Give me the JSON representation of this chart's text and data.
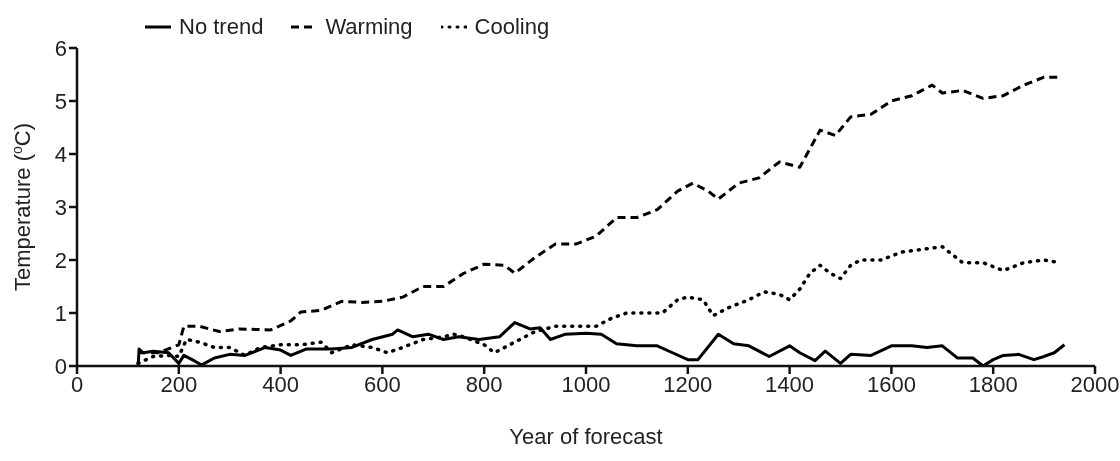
{
  "chart_data": {
    "type": "line",
    "xlabel": "Year of forecast",
    "ylabel": "Temperature ($^{o}$C)",
    "xlim": [
      0,
      2000
    ],
    "xticks": [
      0,
      200,
      400,
      600,
      800,
      1000,
      1200,
      1400,
      1600,
      1800,
      2000
    ],
    "ylim": [
      0,
      6
    ],
    "yticks": [
      0,
      1,
      2,
      3,
      4,
      5,
      6
    ],
    "grid": false,
    "legend": "top left",
    "marker": "none",
    "series": [
      {
        "name": "No trend",
        "color": "#000000",
        "line_style": "solid",
        "x": [
          120,
          122,
          130,
          150,
          180,
          200,
          210,
          230,
          245,
          270,
          300,
          330,
          370,
          400,
          420,
          450,
          500,
          540,
          580,
          620,
          630,
          660,
          690,
          720,
          750,
          790,
          830,
          860,
          890,
          910,
          930,
          960,
          1000,
          1030,
          1060,
          1100,
          1140,
          1170,
          1200,
          1220,
          1260,
          1290,
          1320,
          1360,
          1400,
          1420,
          1450,
          1470,
          1500,
          1520,
          1560,
          1600,
          1640,
          1670,
          1700,
          1730,
          1760,
          1780,
          1800,
          1820,
          1850,
          1880,
          1900,
          1920,
          1940
        ],
        "values": [
          0,
          0.32,
          0.25,
          0.28,
          0.25,
          0.05,
          0.2,
          0.1,
          0.02,
          0.15,
          0.22,
          0.2,
          0.35,
          0.3,
          0.2,
          0.32,
          0.32,
          0.35,
          0.5,
          0.6,
          0.68,
          0.55,
          0.6,
          0.5,
          0.55,
          0.5,
          0.55,
          0.82,
          0.7,
          0.72,
          0.5,
          0.6,
          0.62,
          0.6,
          0.42,
          0.38,
          0.38,
          0.25,
          0.12,
          0.12,
          0.6,
          0.42,
          0.38,
          0.18,
          0.38,
          0.25,
          0.1,
          0.28,
          0.05,
          0.22,
          0.2,
          0.38,
          0.38,
          0.35,
          0.38,
          0.15,
          0.15,
          0,
          0.12,
          0.2,
          0.22,
          0.12,
          0.18,
          0.25,
          0.4
        ]
      },
      {
        "name": "Warming",
        "color": "#000000",
        "line_style": "dashed",
        "x": [
          120,
          160,
          200,
          210,
          240,
          280,
          320,
          380,
          420,
          440,
          480,
          520,
          560,
          600,
          640,
          680,
          720,
          760,
          800,
          840,
          860,
          900,
          940,
          980,
          1020,
          1060,
          1100,
          1140,
          1180,
          1210,
          1240,
          1260,
          1300,
          1340,
          1380,
          1420,
          1460,
          1490,
          1520,
          1560,
          1600,
          1640,
          1680,
          1700,
          1740,
          1780,
          1820,
          1860,
          1900,
          1930
        ],
        "values": [
          0.25,
          0.25,
          0.4,
          0.75,
          0.75,
          0.65,
          0.7,
          0.68,
          0.85,
          1.02,
          1.05,
          1.22,
          1.2,
          1.22,
          1.3,
          1.5,
          1.5,
          1.75,
          1.92,
          1.9,
          1.75,
          2.05,
          2.3,
          2.3,
          2.45,
          2.8,
          2.8,
          2.95,
          3.3,
          3.45,
          3.3,
          3.15,
          3.45,
          3.55,
          3.85,
          3.75,
          4.45,
          4.35,
          4.7,
          4.75,
          5,
          5.1,
          5.3,
          5.15,
          5.2,
          5.05,
          5.1,
          5.3,
          5.45,
          5.45
        ]
      },
      {
        "name": "Cooling",
        "color": "#000000",
        "line_style": "dotted",
        "x": [
          120,
          150,
          180,
          200,
          215,
          240,
          270,
          300,
          330,
          360,
          400,
          440,
          480,
          500,
          540,
          580,
          610,
          640,
          680,
          720,
          740,
          760,
          800,
          820,
          860,
          900,
          940,
          980,
          1020,
          1050,
          1080,
          1110,
          1150,
          1180,
          1200,
          1230,
          1250,
          1280,
          1320,
          1350,
          1380,
          1400,
          1420,
          1440,
          1460,
          1480,
          1500,
          1520,
          1540,
          1580,
          1620,
          1660,
          1700,
          1740,
          1780,
          1820,
          1860,
          1900,
          1930
        ],
        "values": [
          0.05,
          0.18,
          0.2,
          0.18,
          0.5,
          0.45,
          0.35,
          0.35,
          0.2,
          0.35,
          0.4,
          0.4,
          0.45,
          0.25,
          0.4,
          0.35,
          0.25,
          0.35,
          0.5,
          0.55,
          0.6,
          0.55,
          0.4,
          0.25,
          0.45,
          0.65,
          0.75,
          0.75,
          0.75,
          0.9,
          1,
          1,
          1,
          1.25,
          1.3,
          1.25,
          0.95,
          1.1,
          1.25,
          1.4,
          1.35,
          1.25,
          1.45,
          1.75,
          1.9,
          1.75,
          1.65,
          1.9,
          2,
          2,
          2.15,
          2.2,
          2.25,
          1.95,
          1.95,
          1.8,
          1.95,
          2,
          1.95
        ]
      }
    ]
  }
}
